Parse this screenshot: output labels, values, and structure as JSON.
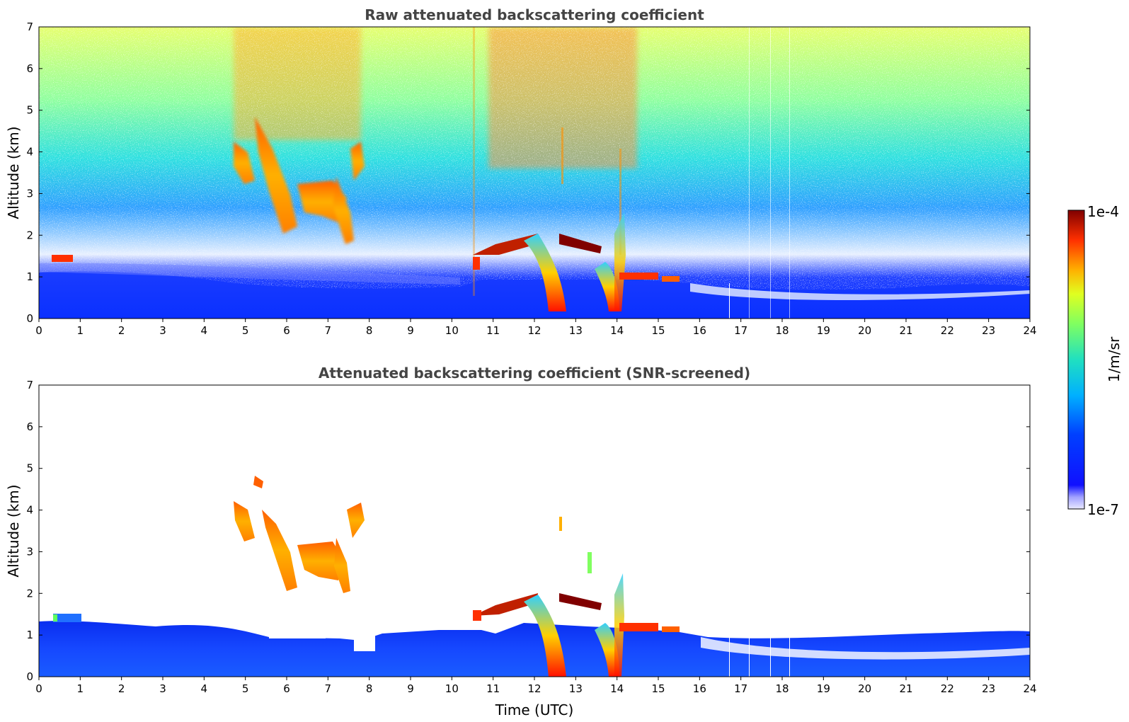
{
  "chart_data": [
    {
      "type": "heatmap",
      "title": "Raw attenuated backscattering coefficient",
      "xlabel": "",
      "ylabel": "Altitude (km)",
      "xlim": [
        0,
        24
      ],
      "ylim": [
        0,
        7
      ],
      "xticks": [
        0,
        1,
        2,
        3,
        4,
        5,
        6,
        7,
        8,
        9,
        10,
        11,
        12,
        13,
        14,
        15,
        16,
        17,
        18,
        19,
        20,
        21,
        22,
        23,
        24
      ],
      "yticks": [
        0,
        1,
        2,
        3,
        4,
        5,
        6,
        7
      ],
      "features": [
        {
          "x_range": [
            0.3,
            0.8
          ],
          "alt_km": [
            1.2,
            1.4
          ],
          "level": "high"
        },
        {
          "x_range": [
            4.8,
            7.9
          ],
          "alt_km": [
            1.7,
            4.8
          ],
          "level": "medium-high"
        },
        {
          "x_range": [
            10.7,
            12.6
          ],
          "alt_km": [
            1.1,
            1.9
          ],
          "level": "high"
        },
        {
          "x_range": [
            12.8,
            13.9
          ],
          "alt_km": [
            1.5,
            2.0
          ],
          "level": "high"
        },
        {
          "x_range": [
            12.3,
            14.4
          ],
          "alt_km": [
            0.0,
            1.0
          ],
          "level": "very high"
        },
        {
          "x_range": [
            14.4,
            15.8
          ],
          "alt_km": [
            0.7,
            1.0
          ],
          "level": "high"
        }
      ]
    },
    {
      "type": "heatmap",
      "title": "Attenuated backscattering coefficient (SNR-screened)",
      "xlabel": "Time (UTC)",
      "ylabel": "Altitude (km)",
      "xlim": [
        0,
        24
      ],
      "ylim": [
        0,
        7
      ],
      "xticks": [
        0,
        1,
        2,
        3,
        4,
        5,
        6,
        7,
        8,
        9,
        10,
        11,
        12,
        13,
        14,
        15,
        16,
        17,
        18,
        19,
        20,
        21,
        22,
        23,
        24
      ],
      "yticks": [
        0,
        1,
        2,
        3,
        4,
        5,
        6,
        7
      ]
    }
  ],
  "colorbar": {
    "label": "1/m/sr",
    "max_label": "1e-4",
    "min_label": "1e-7",
    "scale": "log",
    "colormap": "jet"
  }
}
